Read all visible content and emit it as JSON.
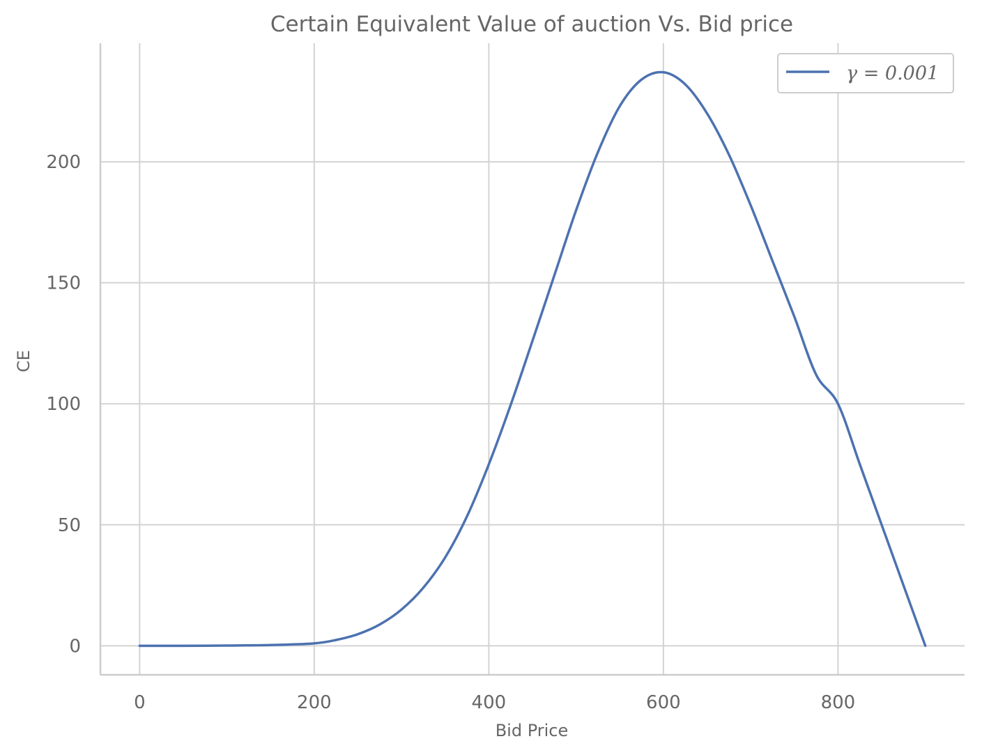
{
  "chart_data": {
    "type": "line",
    "title": "Certain Equivalent Value of auction Vs. Bid price",
    "xlabel": "Bid Price",
    "ylabel": "CE",
    "xlim": [
      -45,
      945
    ],
    "ylim": [
      -12,
      249
    ],
    "x_ticks": [
      0,
      200,
      400,
      600,
      800
    ],
    "y_ticks": [
      0,
      50,
      100,
      150,
      200
    ],
    "x_tick_labels": [
      "0",
      "200",
      "400",
      "600",
      "800"
    ],
    "y_tick_labels": [
      "0",
      "50",
      "100",
      "150",
      "200"
    ],
    "grid": true,
    "legend_position": "top-right",
    "series": [
      {
        "name": "γ = 0.001",
        "color": "#4c72b0",
        "x": [
          0,
          50,
          100,
          150,
          200,
          225,
          250,
          275,
          300,
          325,
          350,
          375,
          400,
          425,
          450,
          475,
          500,
          525,
          550,
          575,
          600,
          625,
          650,
          675,
          700,
          725,
          750,
          775,
          800,
          825,
          850,
          875,
          900
        ],
        "y": [
          0,
          0,
          0.1,
          0.3,
          1,
          2.4,
          4.8,
          8.8,
          15,
          24,
          36.5,
          53.5,
          75,
          99.5,
          126,
          153,
          180,
          204,
          223,
          234,
          237,
          232,
          220,
          203,
          182,
          159,
          136,
          112,
          100,
          75,
          50,
          25,
          0
        ]
      }
    ]
  }
}
